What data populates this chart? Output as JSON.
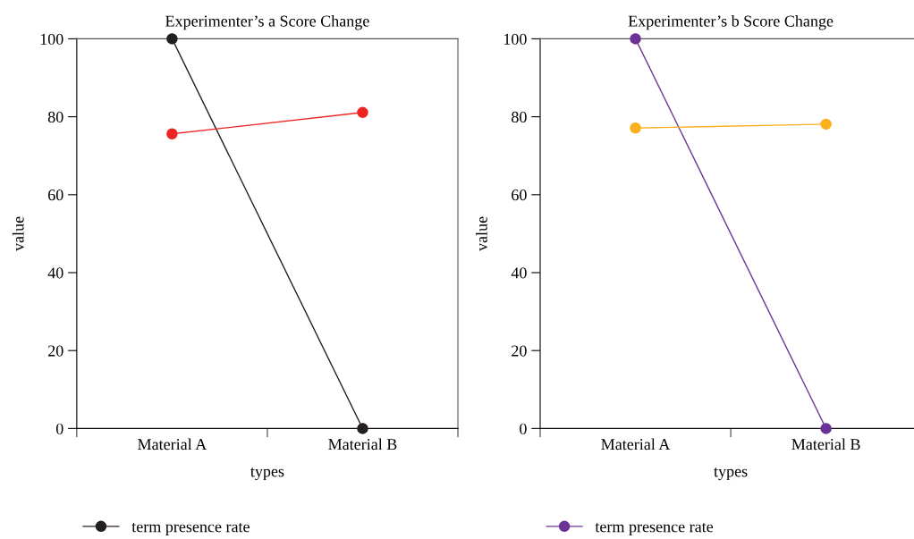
{
  "chart_data": [
    {
      "type": "line",
      "title": "Experimenter’s a Score Change",
      "xlabel": "types",
      "ylabel": "value",
      "categories": [
        "Material A",
        "Material B"
      ],
      "ylim": [
        0,
        100
      ],
      "yticks": [
        0,
        20,
        40,
        60,
        80,
        100
      ],
      "marker": "circle",
      "legend": "bottom",
      "grid": false,
      "series": [
        {
          "name": "term presence rate",
          "color": "#231f20",
          "values": [
            100,
            0
          ]
        },
        {
          "color": "#ee2424",
          "values": [
            75.6,
            81.1
          ]
        }
      ]
    },
    {
      "type": "line",
      "title": "Experimenter’s b Score Change",
      "xlabel": "types",
      "ylabel": "value",
      "categories": [
        "Material A",
        "Material B"
      ],
      "ylim": [
        0,
        100
      ],
      "yticks": [
        0,
        20,
        40,
        60,
        80,
        100
      ],
      "marker": "circle",
      "legend": "bottom",
      "grid": false,
      "series": [
        {
          "name": "term presence rate",
          "color": "#6a3395",
          "values": [
            100,
            0
          ]
        },
        {
          "color": "#fbb01f",
          "values": [
            77.1,
            78.1
          ]
        }
      ]
    }
  ]
}
